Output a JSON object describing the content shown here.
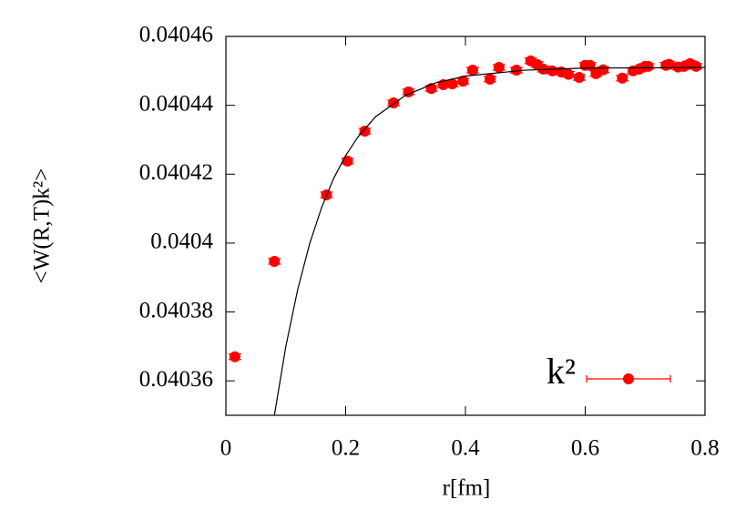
{
  "chart_data": {
    "type": "scatter",
    "x_label": "r[fm]",
    "y_label": "<W(R,T)k²>",
    "xlim": [
      0,
      0.8
    ],
    "xticks": [
      0,
      0.2,
      0.4,
      0.6,
      0.8
    ],
    "ylim": [
      0.04035,
      0.04046
    ],
    "yticks": [
      0.04036,
      0.04038,
      0.0404,
      0.04042,
      0.04044,
      0.04046
    ],
    "legend": "bottom right",
    "series": [
      {
        "name": "k²",
        "color": "#ff0000",
        "x": [
          0.015,
          0.081,
          0.168,
          0.203,
          0.232,
          0.28,
          0.305,
          0.343,
          0.363,
          0.378,
          0.396,
          0.412,
          0.441,
          0.456,
          0.485,
          0.509,
          0.52,
          0.53,
          0.545,
          0.56,
          0.572,
          0.59,
          0.6,
          0.608,
          0.618,
          0.63,
          0.662,
          0.68,
          0.69,
          0.7,
          0.705,
          0.735,
          0.74,
          0.755,
          0.765,
          0.775,
          0.785
        ],
        "values": [
          0.040367,
          0.0403947,
          0.040414,
          0.0404238,
          0.0404325,
          0.0404407,
          0.0404439,
          0.0404449,
          0.040446,
          0.0404462,
          0.040447,
          0.0404502,
          0.0404476,
          0.040451,
          0.0404502,
          0.0404529,
          0.0404518,
          0.0404505,
          0.04045,
          0.0404497,
          0.040449,
          0.0404481,
          0.0404516,
          0.0404516,
          0.0404492,
          0.0404503,
          0.0404479,
          0.04045,
          0.0404505,
          0.0404513,
          0.0404513,
          0.0404516,
          0.0404519,
          0.0404511,
          0.0404513,
          0.0404521,
          0.0404513
        ],
        "errors": [
          8e-07,
          8e-07,
          8e-07,
          8e-07,
          8e-07,
          8e-07,
          8e-07,
          8e-07,
          8e-07,
          8e-07,
          8e-07,
          8e-07,
          8e-07,
          8e-07,
          8e-07,
          8e-07,
          8e-07,
          8e-07,
          8e-07,
          8e-07,
          8e-07,
          8e-07,
          8e-07,
          8e-07,
          8e-07,
          8e-07,
          8e-07,
          8e-07,
          8e-07,
          8e-07,
          8e-07,
          8e-07,
          8e-07,
          8e-07,
          8e-07,
          8e-07,
          8e-07
        ]
      },
      {
        "color": "#000000",
        "x": [
          0.081,
          0.1,
          0.12,
          0.14,
          0.16,
          0.18,
          0.2,
          0.22,
          0.25,
          0.3,
          0.35,
          0.4,
          0.5,
          0.6,
          0.8
        ],
        "values": [
          0.04035,
          0.0403699,
          0.0403866,
          0.0403999,
          0.0404104,
          0.0404188,
          0.0404254,
          0.0404307,
          0.0404367,
          0.0404429,
          0.0404465,
          0.0404485,
          0.0404502,
          0.0404508,
          0.040451
        ]
      }
    ]
  }
}
